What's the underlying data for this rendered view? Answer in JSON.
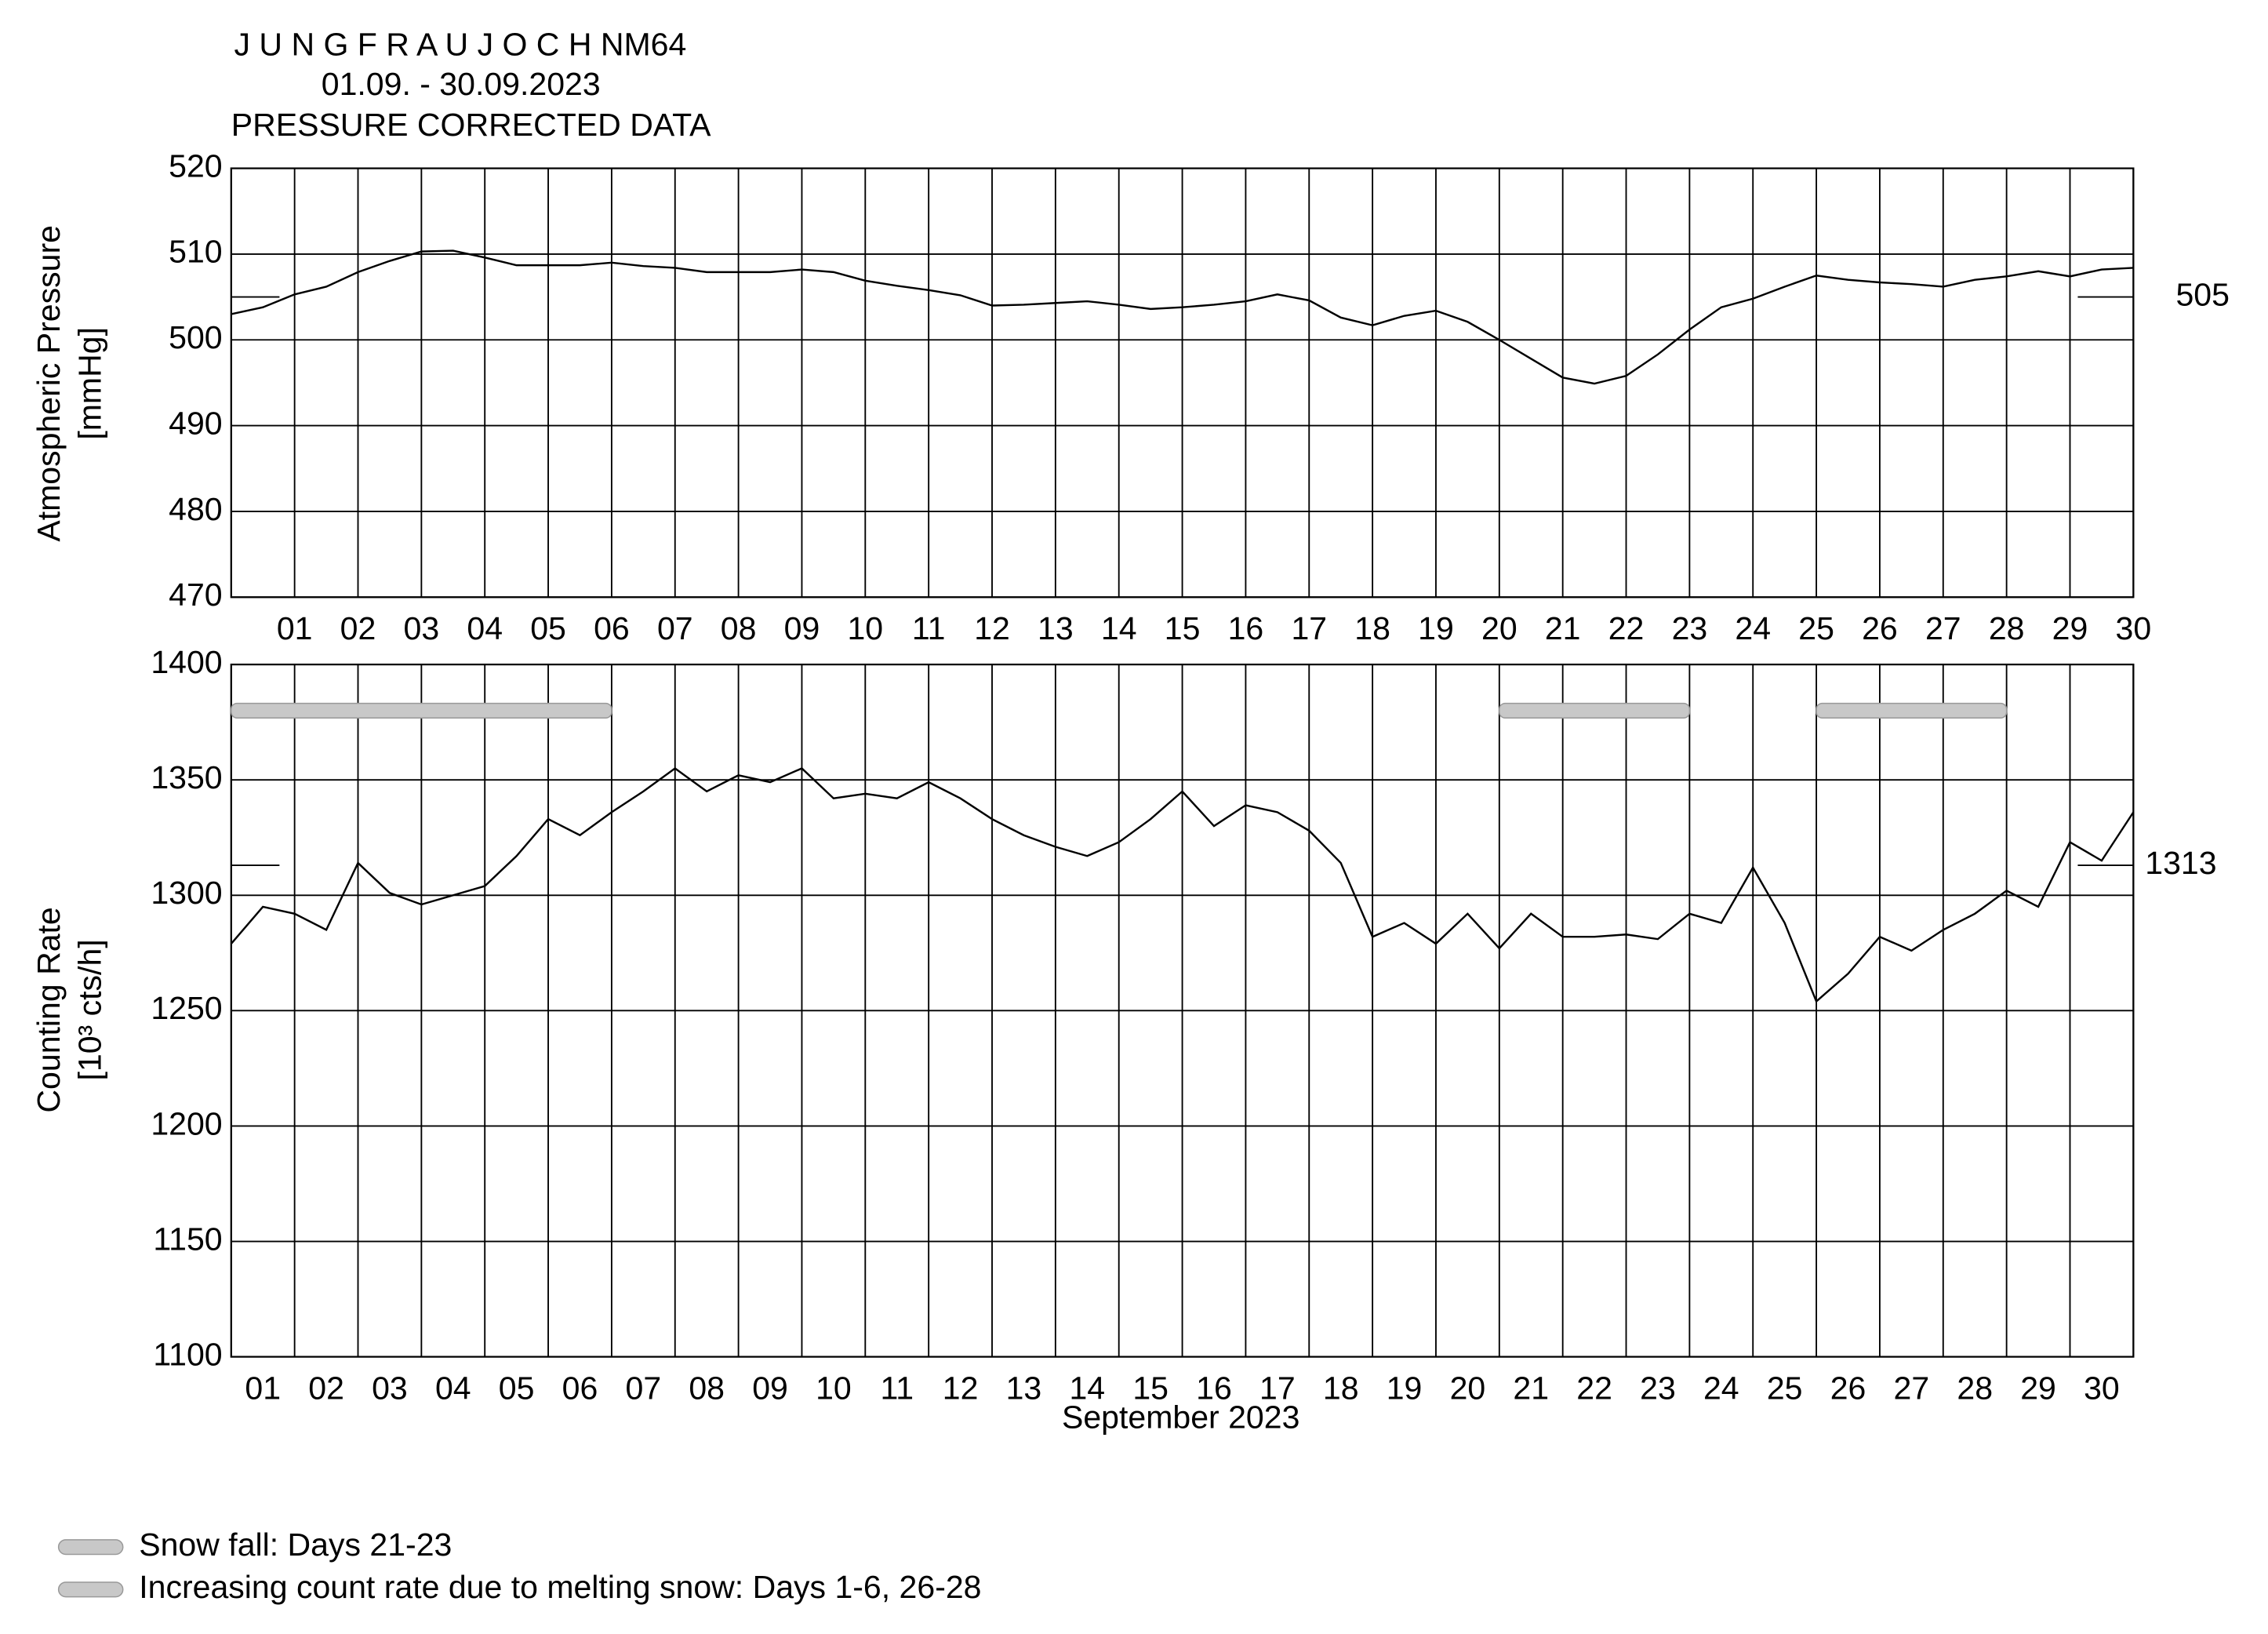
{
  "chart_data": [
    {
      "type": "line",
      "title": "J U N G F R A U J O C H  NM64",
      "subtitle": "01.09. - 30.09.2023",
      "note": "PRESSURE CORRECTED DATA",
      "ylabel": [
        "Atmospheric Pressure",
        "[mmHg]"
      ],
      "xlim": [
        0,
        30
      ],
      "ylim": [
        470,
        520
      ],
      "yticks": [
        470,
        480,
        490,
        500,
        510,
        520
      ],
      "xticks": [
        {
          "value": 1,
          "label": "01"
        },
        {
          "value": 2,
          "label": "02"
        },
        {
          "value": 3,
          "label": "03"
        },
        {
          "value": 4,
          "label": "04"
        },
        {
          "value": 5,
          "label": "05"
        },
        {
          "value": 6,
          "label": "06"
        },
        {
          "value": 7,
          "label": "07"
        },
        {
          "value": 8,
          "label": "08"
        },
        {
          "value": 9,
          "label": "09"
        },
        {
          "value": 10,
          "label": "10"
        },
        {
          "value": 11,
          "label": "11"
        },
        {
          "value": 12,
          "label": "12"
        },
        {
          "value": 13,
          "label": "13"
        },
        {
          "value": 14,
          "label": "14"
        },
        {
          "value": 15,
          "label": "15"
        },
        {
          "value": 16,
          "label": "16"
        },
        {
          "value": 17,
          "label": "17"
        },
        {
          "value": 18,
          "label": "18"
        },
        {
          "value": 19,
          "label": "19"
        },
        {
          "value": 20,
          "label": "20"
        },
        {
          "value": 21,
          "label": "21"
        },
        {
          "value": 22,
          "label": "22"
        },
        {
          "value": 23,
          "label": "23"
        },
        {
          "value": 24,
          "label": "24"
        },
        {
          "value": 25,
          "label": "25"
        },
        {
          "value": 26,
          "label": "26"
        },
        {
          "value": 27,
          "label": "27"
        },
        {
          "value": 28,
          "label": "28"
        },
        {
          "value": 29,
          "label": "29"
        },
        {
          "value": 30,
          "label": "30"
        }
      ],
      "reference": 505,
      "color": "#000000",
      "x": [
        0,
        0.5,
        1,
        1.5,
        2,
        2.5,
        3,
        3.5,
        4,
        4.5,
        5,
        5.5,
        6,
        6.5,
        7,
        7.5,
        8,
        8.5,
        9,
        9.5,
        10,
        10.5,
        11,
        11.5,
        12,
        12.5,
        13,
        13.5,
        14,
        14.5,
        15,
        15.5,
        16,
        16.5,
        17,
        17.5,
        18,
        18.5,
        19,
        19.5,
        20,
        20.5,
        21,
        21.5,
        22,
        22.5,
        23,
        23.5,
        24,
        24.5,
        25,
        25.5,
        26,
        26.5,
        27,
        27.5,
        28,
        28.5,
        29,
        29.5,
        30
      ],
      "values": [
        503,
        503.8,
        505.3,
        506.2,
        507.9,
        509.2,
        510.3,
        510.4,
        509.6,
        508.7,
        508.7,
        508.7,
        509,
        508.6,
        508.4,
        507.9,
        507.9,
        507.9,
        508.2,
        507.9,
        506.9,
        506.3,
        505.8,
        505.2,
        504,
        504.1,
        504.3,
        504.5,
        504.1,
        503.6,
        503.8,
        504.1,
        504.5,
        505.3,
        504.6,
        502.6,
        501.7,
        502.8,
        503.4,
        502.1,
        500,
        497.8,
        495.6,
        494.9,
        495.8,
        498.3,
        501.2,
        503.8,
        504.8,
        506.2,
        507.5,
        507,
        506.7,
        506.5,
        506.2,
        507,
        507.4,
        508,
        507.4,
        508.2,
        508.4
      ]
    },
    {
      "type": "line",
      "ylabel": [
        "Counting Rate",
        "[10³ cts/h]"
      ],
      "xlabel": "September 2023",
      "xlim": [
        0,
        30
      ],
      "ylim": [
        1100,
        1400
      ],
      "yticks": [
        1100,
        1150,
        1200,
        1250,
        1300,
        1350,
        1400
      ],
      "xticks": [
        {
          "value": 0.5,
          "label": "01"
        },
        {
          "value": 1.5,
          "label": "02"
        },
        {
          "value": 2.5,
          "label": "03"
        },
        {
          "value": 3.5,
          "label": "04"
        },
        {
          "value": 4.5,
          "label": "05"
        },
        {
          "value": 5.5,
          "label": "06"
        },
        {
          "value": 6.5,
          "label": "07"
        },
        {
          "value": 7.5,
          "label": "08"
        },
        {
          "value": 8.5,
          "label": "09"
        },
        {
          "value": 9.5,
          "label": "10"
        },
        {
          "value": 10.5,
          "label": "11"
        },
        {
          "value": 11.5,
          "label": "12"
        },
        {
          "value": 12.5,
          "label": "13"
        },
        {
          "value": 13.5,
          "label": "14"
        },
        {
          "value": 14.5,
          "label": "15"
        },
        {
          "value": 15.5,
          "label": "16"
        },
        {
          "value": 16.5,
          "label": "17"
        },
        {
          "value": 17.5,
          "label": "18"
        },
        {
          "value": 18.5,
          "label": "19"
        },
        {
          "value": 19.5,
          "label": "20"
        },
        {
          "value": 20.5,
          "label": "21"
        },
        {
          "value": 21.5,
          "label": "22"
        },
        {
          "value": 22.5,
          "label": "23"
        },
        {
          "value": 23.5,
          "label": "24"
        },
        {
          "value": 24.5,
          "label": "25"
        },
        {
          "value": 25.5,
          "label": "26"
        },
        {
          "value": 26.5,
          "label": "27"
        },
        {
          "value": 27.5,
          "label": "28"
        },
        {
          "value": 28.5,
          "label": "29"
        },
        {
          "value": 29.5,
          "label": "30"
        }
      ],
      "reference": 1313,
      "color": "#000000",
      "bands": [
        {
          "x": [
            0,
            6
          ],
          "y": 1380
        },
        {
          "x": [
            20,
            23
          ],
          "y": 1380
        },
        {
          "x": [
            25,
            28
          ],
          "y": 1380
        }
      ],
      "band_color": "#c8c8c8",
      "legend": [
        "Snow fall: Days 21-23",
        "Increasing count rate due to melting snow: Days 1-6, 26-28"
      ],
      "x": [
        0,
        0.5,
        1,
        1.5,
        2,
        2.5,
        3,
        3.5,
        4,
        4.5,
        5,
        5.5,
        6,
        6.5,
        7,
        7.5,
        8,
        8.5,
        9,
        9.5,
        10,
        10.5,
        11,
        11.5,
        12,
        12.5,
        13,
        13.5,
        14,
        14.5,
        15,
        15.5,
        16,
        16.5,
        17,
        17.5,
        18,
        18.5,
        19,
        19.5,
        20,
        20.5,
        21,
        21.5,
        22,
        22.5,
        23,
        23.5,
        24,
        24.5,
        25,
        25.5,
        26,
        26.5,
        27,
        27.5,
        28,
        28.5,
        29,
        29.5,
        30
      ],
      "values": [
        1279,
        1295,
        1292,
        1285,
        1314,
        1301,
        1296,
        1300,
        1304,
        1317,
        1333,
        1326,
        1336,
        1345,
        1355,
        1345,
        1352,
        1349,
        1355,
        1342,
        1344,
        1342,
        1349,
        1342,
        1333,
        1326,
        1321,
        1317,
        1323,
        1333,
        1345,
        1330,
        1339,
        1336,
        1328,
        1314,
        1282,
        1288,
        1279,
        1292,
        1277,
        1292,
        1282,
        1282,
        1283,
        1281,
        1292,
        1288,
        1312,
        1288,
        1254,
        1266,
        1282,
        1276,
        1285,
        1292,
        1302,
        1295,
        1323,
        1315,
        1336
      ]
    }
  ]
}
